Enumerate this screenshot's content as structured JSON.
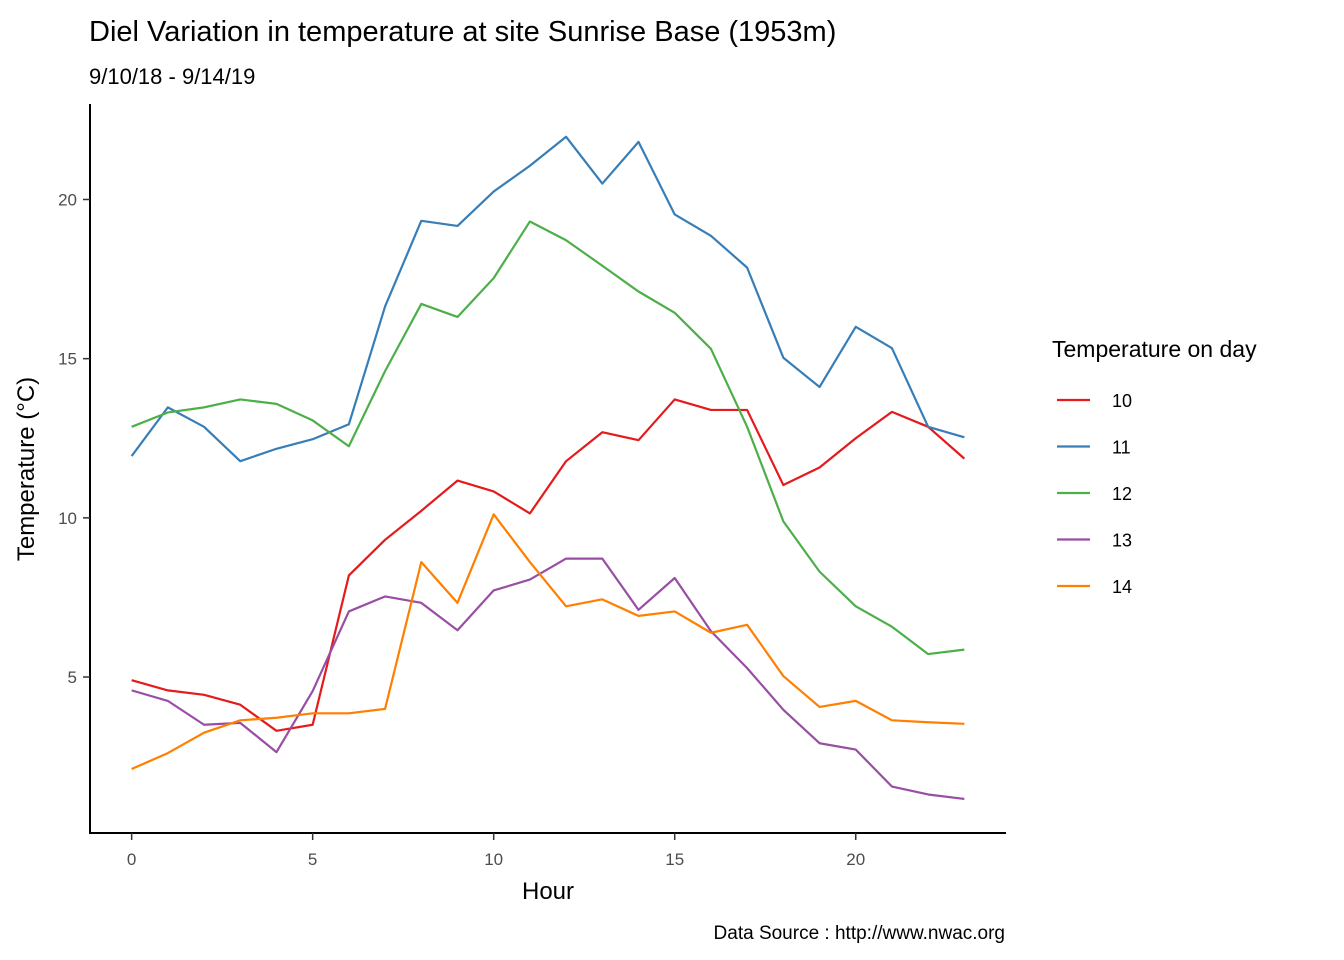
{
  "chart_data": {
    "type": "line",
    "title": "Diel Variation in temperature at site Sunrise Base (1953m)",
    "subtitle": "9/10/18 - 9/14/19",
    "xlabel": "Hour",
    "ylabel": "Temperature (°C)",
    "caption": "Data Source : http://www.nwac.org",
    "xlim": [
      -1.15,
      24.15
    ],
    "ylim": [
      0.1,
      23.0
    ],
    "x_ticks": [
      0,
      5,
      10,
      15,
      20
    ],
    "y_ticks": [
      5,
      10,
      15,
      20
    ],
    "grid": false,
    "legend": {
      "title": "Temperature on day",
      "position": "right"
    },
    "x": [
      0,
      1,
      2,
      3,
      4,
      5,
      6,
      7,
      8,
      9,
      10,
      11,
      12,
      13,
      14,
      15,
      16,
      17,
      18,
      19,
      20,
      21,
      22,
      23
    ],
    "series": [
      {
        "name": "10",
        "color": "#e41a1c",
        "values": [
          4.9,
          4.58,
          4.44,
          4.13,
          3.31,
          3.5,
          8.19,
          9.31,
          10.22,
          11.17,
          10.83,
          10.14,
          11.78,
          12.69,
          12.44,
          13.72,
          13.39,
          13.39,
          11.03,
          11.58,
          12.5,
          13.33,
          12.86,
          11.86
        ]
      },
      {
        "name": "11",
        "color": "#377eb8",
        "values": [
          11.94,
          13.47,
          12.86,
          11.78,
          12.17,
          12.47,
          12.94,
          16.64,
          19.33,
          19.17,
          20.25,
          21.06,
          21.97,
          20.5,
          21.81,
          19.53,
          18.86,
          17.86,
          15.03,
          14.11,
          16.0,
          15.33,
          12.86,
          12.53
        ]
      },
      {
        "name": "12",
        "color": "#4daf4a",
        "values": [
          12.86,
          13.31,
          13.47,
          13.72,
          13.58,
          13.06,
          12.25,
          14.61,
          16.72,
          16.31,
          17.53,
          19.31,
          18.72,
          17.92,
          17.11,
          16.44,
          15.31,
          12.86,
          9.89,
          8.31,
          7.22,
          6.58,
          5.72,
          5.86
        ]
      },
      {
        "name": "13",
        "color": "#984ea3",
        "values": [
          4.58,
          4.25,
          3.5,
          3.56,
          2.64,
          4.56,
          7.06,
          7.53,
          7.33,
          6.47,
          7.72,
          8.06,
          8.72,
          8.72,
          7.11,
          8.11,
          6.44,
          5.28,
          3.97,
          2.92,
          2.72,
          1.56,
          1.31,
          1.17
        ]
      },
      {
        "name": "14",
        "color": "#ff7f00",
        "values": [
          2.11,
          2.61,
          3.25,
          3.64,
          3.72,
          3.86,
          3.86,
          4.0,
          8.61,
          7.33,
          10.11,
          8.61,
          7.22,
          7.44,
          6.92,
          7.06,
          6.39,
          6.64,
          5.03,
          4.06,
          4.25,
          3.64,
          3.58,
          3.53
        ]
      }
    ]
  }
}
